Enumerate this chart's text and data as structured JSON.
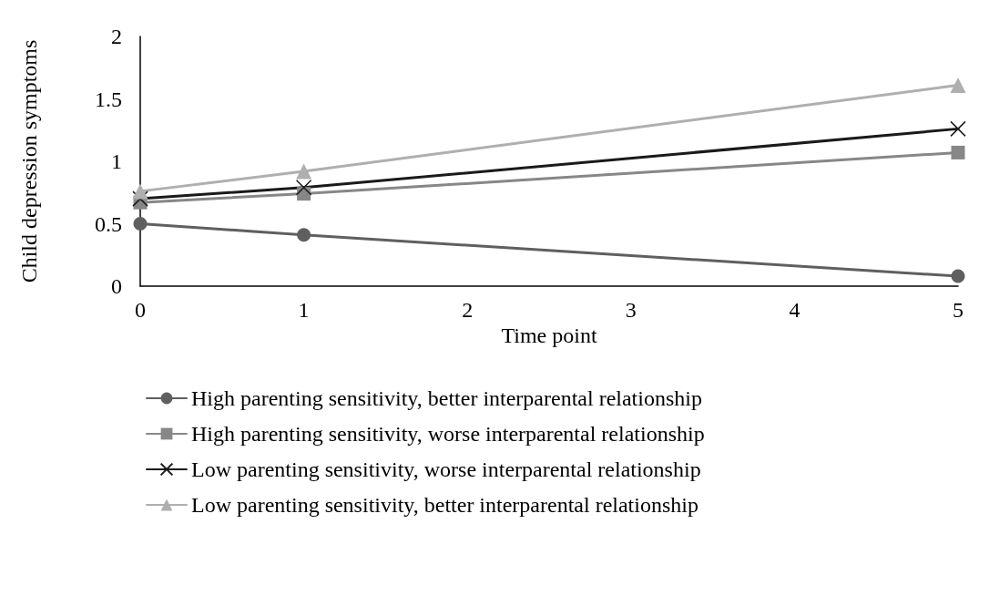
{
  "chart_data": {
    "type": "line",
    "xlabel": "Time point",
    "ylabel": "Child depression symptoms",
    "x": [
      0,
      1,
      5
    ],
    "xlim": [
      0,
      5
    ],
    "xticks": [
      0,
      1,
      2,
      3,
      4,
      5
    ],
    "ylim": [
      0,
      2
    ],
    "yticks": [
      0,
      0.5,
      1,
      1.5,
      2
    ],
    "grid": false,
    "legend": "bottom",
    "line_style": "solid",
    "series": [
      {
        "name": "High parenting sensitivity, better interparental relationship",
        "color": "#5f5f5f",
        "marker": "circle",
        "values": [
          0.5,
          0.41,
          0.08
        ]
      },
      {
        "name": "High parenting sensitivity, worse interparental relationship",
        "color": "#878787",
        "marker": "square",
        "values": [
          0.67,
          0.74,
          1.07
        ]
      },
      {
        "name": "Low parenting sensitivity, worse interparental relationship",
        "color": "#1a1a1a",
        "marker": "cross",
        "values": [
          0.7,
          0.79,
          1.26
        ]
      },
      {
        "name": "Low parenting sensitivity, better interparental relationship",
        "color": "#afafaf",
        "marker": "triangle",
        "values": [
          0.76,
          0.92,
          1.61
        ]
      }
    ]
  }
}
